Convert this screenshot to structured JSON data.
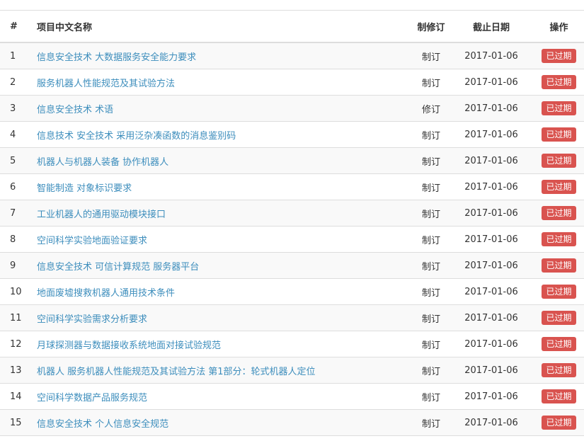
{
  "table": {
    "header": [
      "#",
      "项目中文名称",
      "制修订",
      "截止日期",
      "操作"
    ],
    "rows": [
      [
        "1",
        "信息安全技术 大数据服务安全能力要求",
        "制订",
        "2017-01-06",
        "已过期"
      ],
      [
        "2",
        "服务机器人性能规范及其试验方法",
        "制订",
        "2017-01-06",
        "已过期"
      ],
      [
        "3",
        "信息安全技术 术语",
        "修订",
        "2017-01-06",
        "已过期"
      ],
      [
        "4",
        "信息技术 安全技术 采用泛杂凑函数的消息鉴别码",
        "制订",
        "2017-01-06",
        "已过期"
      ],
      [
        "5",
        "机器人与机器人装备 协作机器人",
        "制订",
        "2017-01-06",
        "已过期"
      ],
      [
        "6",
        "智能制造 对象标识要求",
        "制订",
        "2017-01-06",
        "已过期"
      ],
      [
        "7",
        "工业机器人的通用驱动模块接口",
        "制订",
        "2017-01-06",
        "已过期"
      ],
      [
        "8",
        "空间科学实验地面验证要求",
        "制订",
        "2017-01-06",
        "已过期"
      ],
      [
        "9",
        "信息安全技术 可信计算规范 服务器平台",
        "制订",
        "2017-01-06",
        "已过期"
      ],
      [
        "10",
        "地面废墟搜救机器人通用技术条件",
        "制订",
        "2017-01-06",
        "已过期"
      ],
      [
        "11",
        "空间科学实验需求分析要求",
        "制订",
        "2017-01-06",
        "已过期"
      ],
      [
        "12",
        "月球探测器与数据接收系统地面对接试验规范",
        "制订",
        "2017-01-06",
        "已过期"
      ],
      [
        "13",
        "机器人 服务机器人性能规范及其试验方法 第1部分：轮式机器人定位",
        "制订",
        "2017-01-06",
        "已过期"
      ],
      [
        "14",
        "空间科学数据产品服务规范",
        "制订",
        "2017-01-06",
        "已过期"
      ],
      [
        "15",
        "信息安全技术 个人信息安全规范",
        "制订",
        "2017-01-06",
        "已过期"
      ]
    ]
  }
}
